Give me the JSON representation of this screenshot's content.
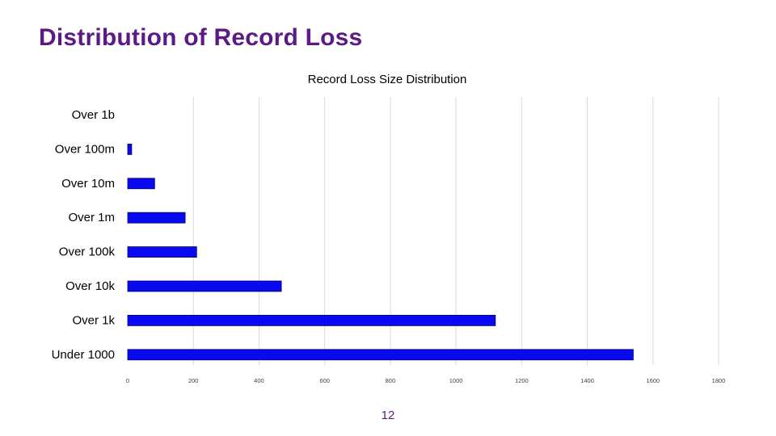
{
  "slide": {
    "title": "Distribution of Record Loss",
    "page_number": "12"
  },
  "colors": {
    "title": "#5b1a86",
    "bar_fill": "#0a0af0",
    "bar_outline": "#000066",
    "grid": "#d9d9d9"
  },
  "chart_data": {
    "type": "bar",
    "orientation": "horizontal",
    "title": "Record Loss Size Distribution",
    "xlabel": "",
    "ylabel": "",
    "categories": [
      "Over 1b",
      "Over 100m",
      "Over 10m",
      "Over 1m",
      "Over 100k",
      "Over 10k",
      "Over 1k",
      "Under 1000"
    ],
    "values": [
      0,
      12,
      82,
      175,
      210,
      468,
      1120,
      1540
    ],
    "xlim": [
      0,
      1800
    ],
    "xticks": [
      0,
      200,
      400,
      600,
      800,
      1000,
      1200,
      1400,
      1600,
      1800
    ],
    "xtick_labels": [
      "0",
      "200",
      "400",
      "600",
      "800",
      "1000",
      "1200",
      "1400",
      "1600",
      "1800"
    ],
    "grid": "vertical",
    "legend": "none"
  }
}
